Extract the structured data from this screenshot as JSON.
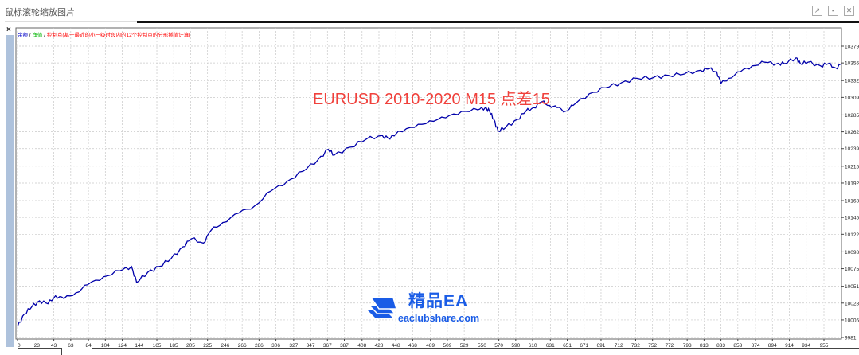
{
  "window": {
    "title": "鼠标滚轮缩放图片",
    "icons": [
      "popout-icon",
      "minimize-icon",
      "close-icon"
    ],
    "panel_close": "×"
  },
  "legend": {
    "balance": "余额",
    "sep1": " / ",
    "equity": "净值",
    "sep2": " / ",
    "control": "控制点(基于最近的小一级时段内的12个控制点的分形插值计算)",
    "colors": {
      "balance": "#0000c8",
      "equity": "#00b400",
      "control": "#ff0000"
    }
  },
  "headline": "EURUSD 2010-2020 M15 点差15",
  "watermark": {
    "name": "精品EA",
    "url": "eaclubshare.com",
    "color": "#1a5ce6"
  },
  "chart_data": {
    "type": "line",
    "title": "EURUSD 2010-2020 M15 点差15",
    "xlabel": "",
    "ylabel": "",
    "xlim": [
      -2,
      976
    ],
    "ylim": [
      9981,
      10400
    ],
    "grid": true,
    "line_color": "#0000aa",
    "x_ticks": [
      0,
      23,
      43,
      63,
      84,
      104,
      124,
      144,
      165,
      185,
      205,
      225,
      246,
      266,
      286,
      306,
      327,
      347,
      367,
      387,
      408,
      428,
      448,
      468,
      489,
      509,
      529,
      550,
      570,
      590,
      610,
      631,
      651,
      671,
      691,
      712,
      732,
      752,
      772,
      793,
      813,
      833,
      853,
      874,
      894,
      914,
      934,
      955
    ],
    "y_ticks": [
      9981,
      10005,
      10028,
      10051,
      10075,
      10098,
      10122,
      10145,
      10168,
      10192,
      10215,
      10239,
      10262,
      10285,
      10309,
      10332,
      10356,
      10379
    ],
    "series": [
      {
        "name": "余额",
        "x": [
          0,
          8,
          17,
          26,
          36,
          45,
          55,
          69,
          83,
          102,
          121,
          135,
          141,
          154,
          168,
          182,
          196,
          206,
          220,
          229,
          243,
          262,
          281,
          300,
          319,
          338,
          356,
          368,
          375,
          394,
          413,
          432,
          441,
          451,
          470,
          488,
          507,
          526,
          545,
          554,
          559,
          564,
          569,
          578,
          592,
          602,
          611,
          621,
          630,
          639,
          649,
          658,
          677,
          696,
          715,
          734,
          753,
          771,
          790,
          809,
          819,
          828,
          833,
          842,
          856,
          870,
          885,
          899,
          908,
          922,
          927,
          936,
          951,
          960,
          969,
          976
        ],
        "y": [
          9996,
          10013,
          10023,
          10031,
          10027,
          10038,
          10034,
          10042,
          10053,
          10064,
          10072,
          10078,
          10056,
          10070,
          10078,
          10089,
          10105,
          10116,
          10110,
          10127,
          10138,
          10151,
          10161,
          10181,
          10194,
          10208,
          10224,
          10238,
          10230,
          10241,
          10252,
          10257,
          10252,
          10263,
          10268,
          10277,
          10281,
          10290,
          10292,
          10295,
          10290,
          10279,
          10263,
          10268,
          10279,
          10290,
          10295,
          10303,
          10298,
          10295,
          10290,
          10298,
          10314,
          10322,
          10329,
          10335,
          10336,
          10339,
          10341,
          10346,
          10348,
          10344,
          10328,
          10335,
          10344,
          10352,
          10357,
          10355,
          10355,
          10363,
          10355,
          10357,
          10352,
          10355,
          10349,
          10355
        ]
      }
    ]
  }
}
